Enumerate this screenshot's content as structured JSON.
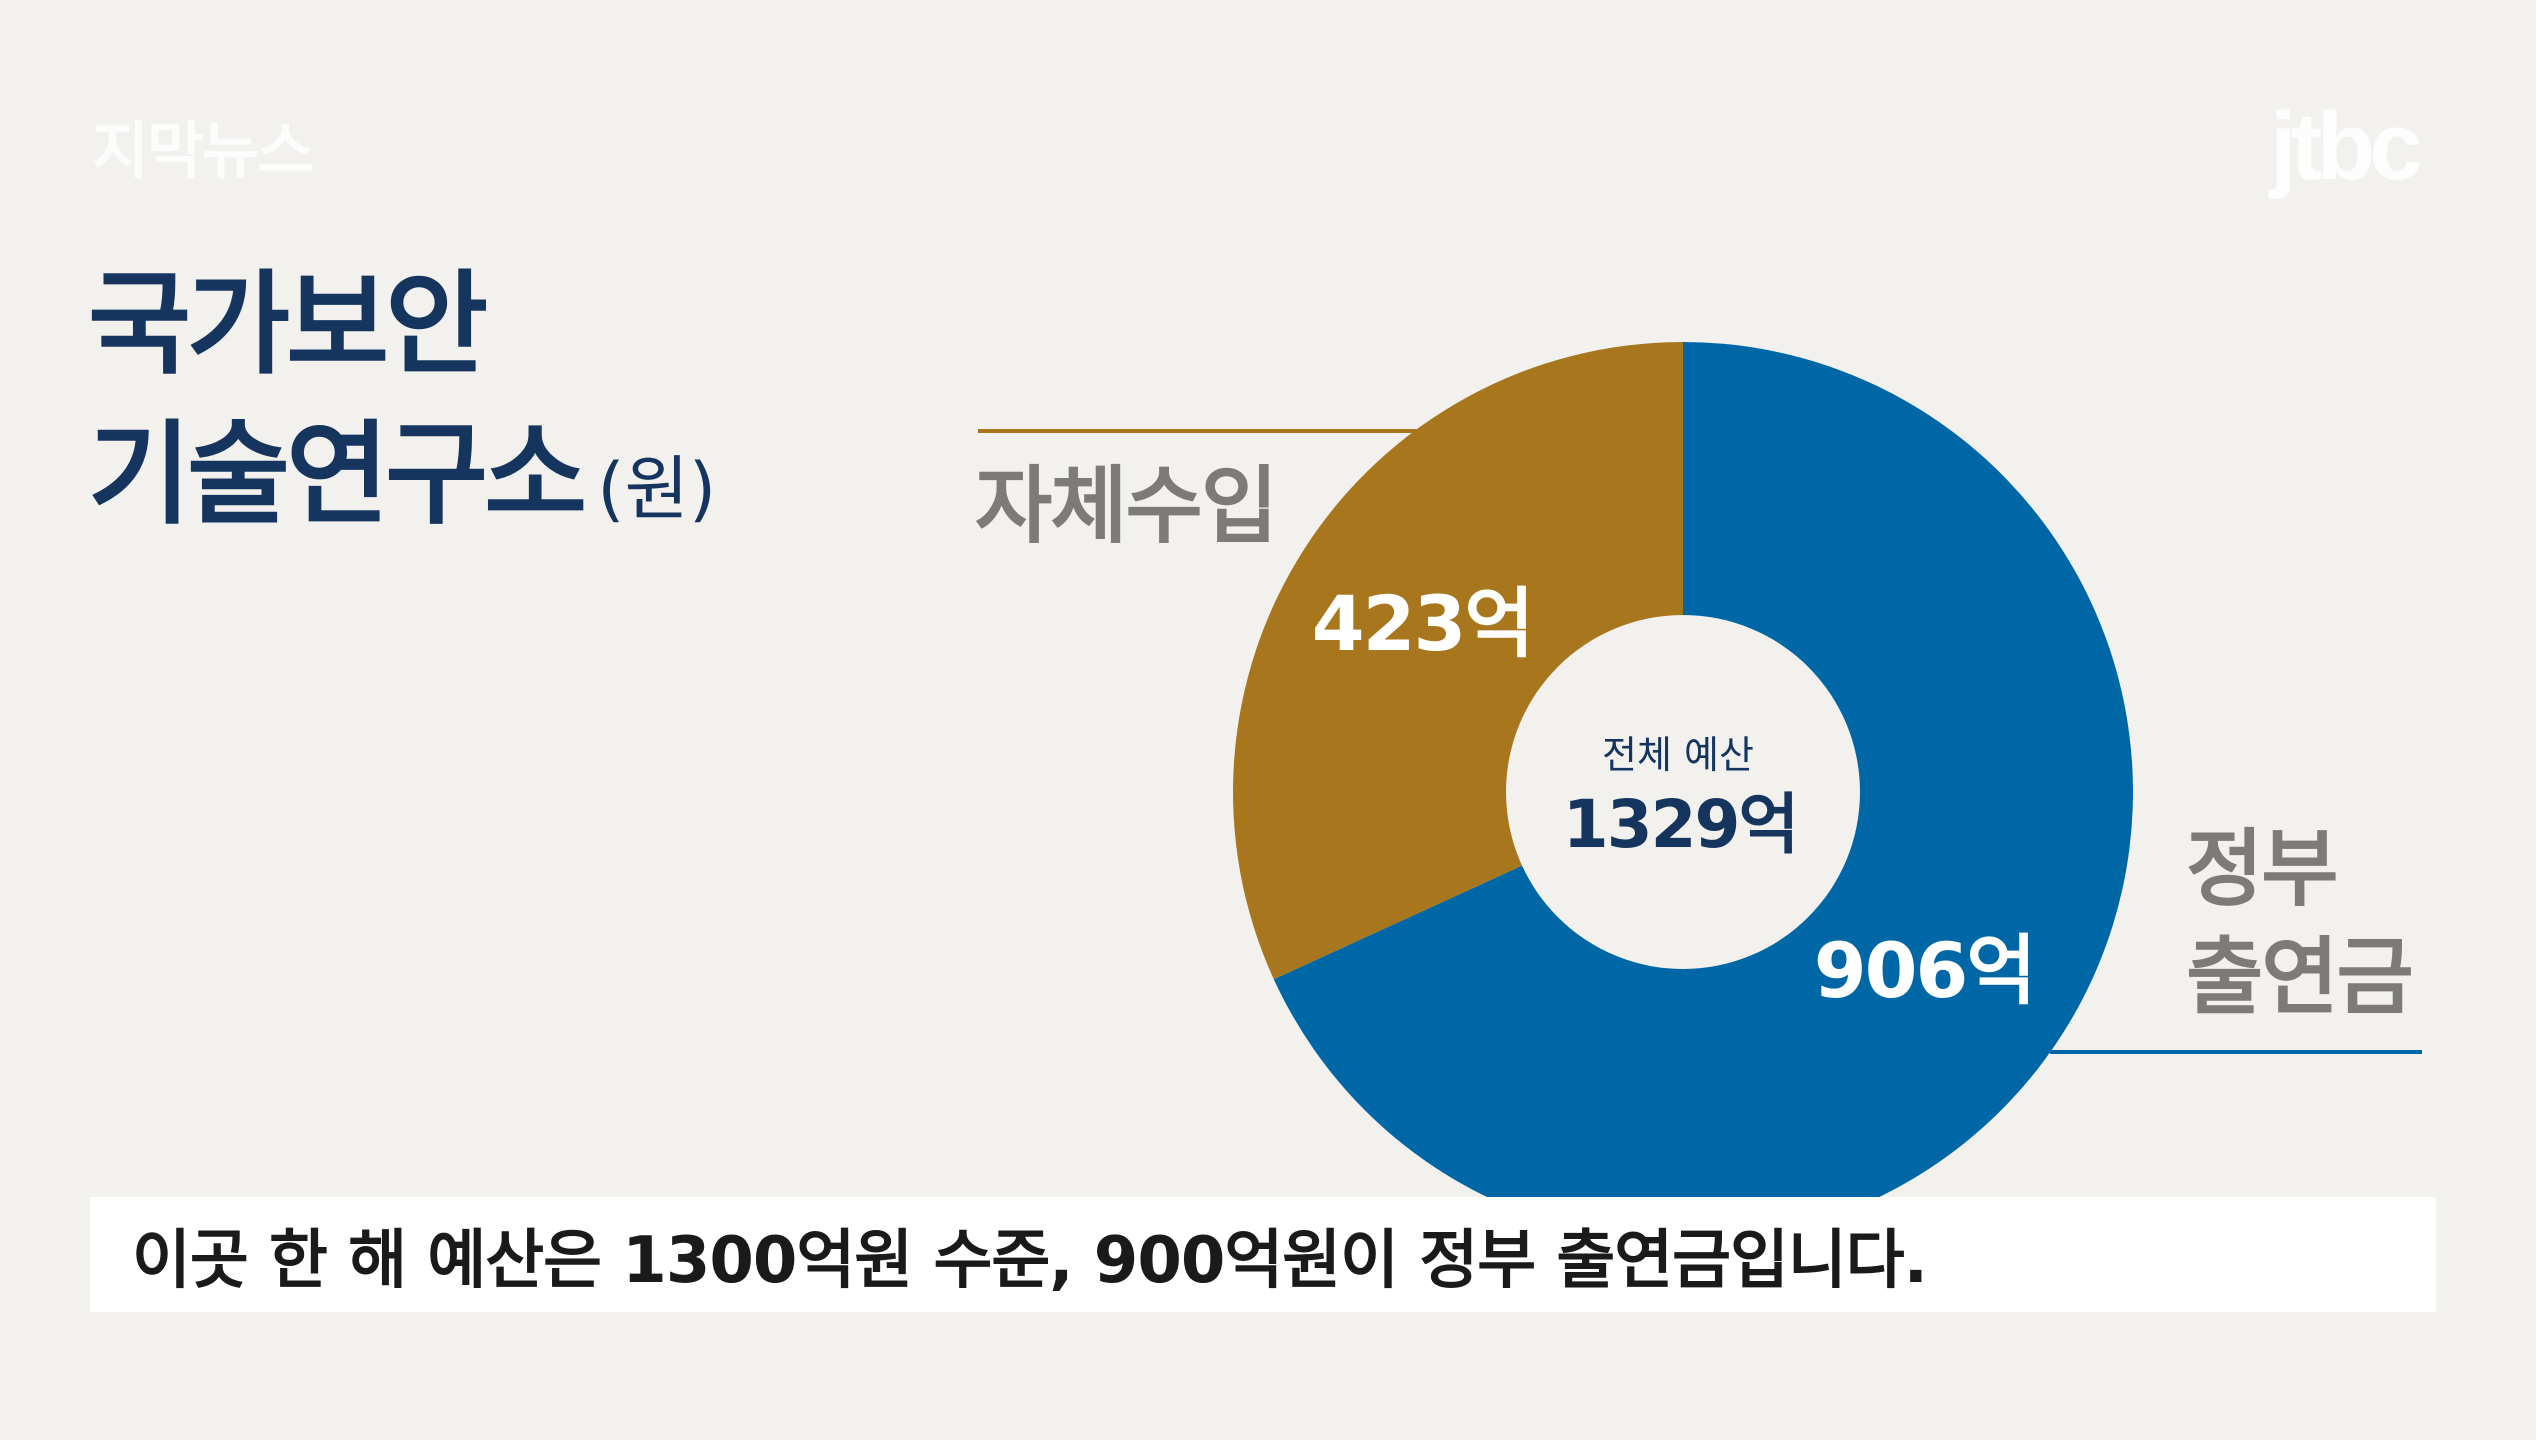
{
  "watermark": "지막뉴스",
  "logo": "jtbc",
  "title": {
    "line1": "국가보안",
    "line2": "기술연구소",
    "unit": "(원)"
  },
  "chart_data": {
    "type": "pie",
    "donut": true,
    "center_label": "전체 예산",
    "center_value": "1329억",
    "slices": [
      {
        "label": "정부 출연금",
        "label_lines": [
          "정부",
          "출연금"
        ],
        "value": 906,
        "value_label": "906억",
        "color": "#0067a6"
      },
      {
        "label": "자체수입",
        "label_lines": [
          "자체수입"
        ],
        "value": 423,
        "value_label": "423억",
        "color": "#a8771d"
      }
    ],
    "total": 1329
  },
  "caption": "이곳 한 해 예산은 1300억원 수준, 900억원이 정부 출연금입니다."
}
